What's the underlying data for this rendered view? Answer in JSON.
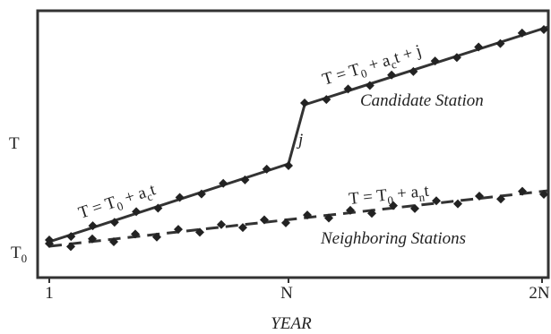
{
  "y_axis": {
    "label": "T",
    "origin_label": [
      "T",
      "0"
    ]
  },
  "x_axis": {
    "ticks": [
      "1",
      "N",
      "2N"
    ],
    "label": "YEAR"
  },
  "candidate": {
    "equation": [
      "T = T",
      "0",
      " + a",
      "c",
      "t + j"
    ],
    "name": "Candidate Station",
    "jump_label": "j",
    "early_equation": [
      "T = T",
      "0",
      " + a",
      "c",
      "t"
    ]
  },
  "neighbors": {
    "equation": [
      "T = T",
      "0",
      " + a",
      "n",
      "t"
    ],
    "name": "Neighboring Stations"
  }
}
